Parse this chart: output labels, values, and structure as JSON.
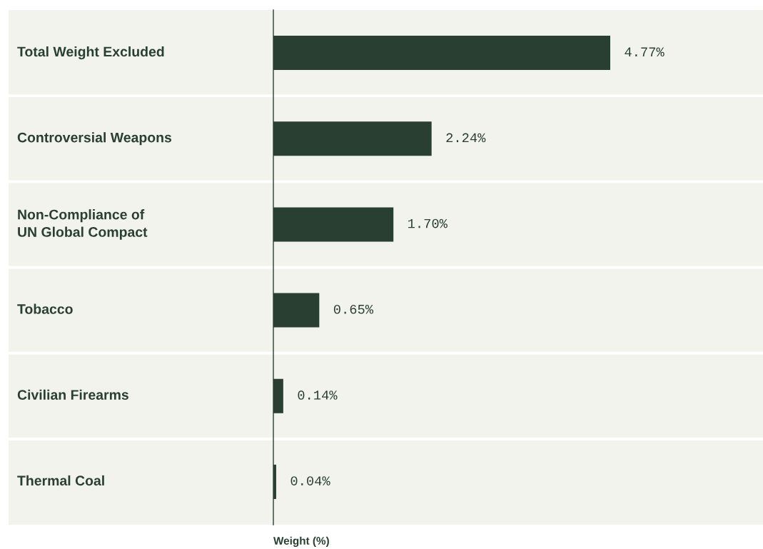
{
  "chart_data": {
    "type": "bar",
    "orientation": "horizontal",
    "categories": [
      "Total Weight Excluded",
      "Controversial Weapons",
      "Non-Compliance of\nUN Global Compact",
      "Tobacco",
      "Civilian Firearms",
      "Thermal Coal"
    ],
    "values": [
      4.77,
      2.24,
      1.7,
      0.65,
      0.14,
      0.04
    ],
    "value_labels": [
      "4.77%",
      "2.24%",
      "1.70%",
      "0.65%",
      "0.14%",
      "0.04%"
    ],
    "color": "#283f31",
    "xlabel": "Weight (%)"
  }
}
